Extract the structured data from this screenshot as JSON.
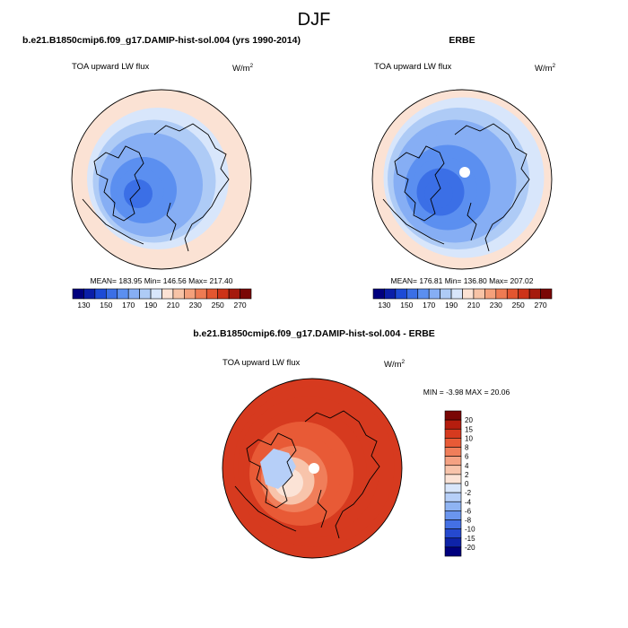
{
  "figure": {
    "season": "DJF",
    "variable": "TOA upward LW flux",
    "units": "W/m",
    "units_exp": "2"
  },
  "panels": [
    {
      "id": "model",
      "title": "b.e21.B1850cmip6.f09_g17.DAMIP-hist-sol.004 (yrs 1990-2014)",
      "field": "TOA upward LW flux",
      "stats": {
        "mean": "183.95",
        "min": "146.56",
        "max": "217.40"
      },
      "stats_text": "MEAN= 183.95  Min= 146.56  Max= 217.40",
      "ring_levels": [
        205,
        200,
        190,
        180,
        175,
        170,
        165,
        160,
        158
      ]
    },
    {
      "id": "obs",
      "title": "ERBE",
      "field": "TOA upward LW flux",
      "stats": {
        "mean": "176.81",
        "min": "136.80",
        "max": "207.02"
      },
      "stats_text": "MEAN= 176.81  Min= 136.80  Max= 207.02",
      "pole_missing": true,
      "ring_levels": [
        200,
        195,
        185,
        175,
        170,
        165,
        160,
        155,
        150
      ]
    },
    {
      "id": "diff",
      "title": "b.e21.B1850cmip6.f09_g17.DAMIP-hist-sol.004 - ERBE",
      "field": "TOA upward LW flux",
      "stats": {
        "min": "-3.98",
        "max": "20.06"
      },
      "stats_text": "MIN =  -3.98 MAX =  20.06",
      "pole_missing": true,
      "ring_levels": [
        13,
        12,
        11,
        10,
        9,
        8,
        6,
        2,
        1
      ]
    }
  ],
  "colorbar_abs": {
    "colors": [
      "#00007e",
      "#0a1ea8",
      "#1d4bd6",
      "#3b6fe6",
      "#5b8ff0",
      "#86aef4",
      "#aecbf6",
      "#d8e6fb",
      "#fbe2d4",
      "#f7c3a6",
      "#f4a07b",
      "#ee7b53",
      "#e35630",
      "#cc3318",
      "#a51a0c",
      "#7a0705"
    ],
    "tick_labels": [
      "130",
      "150",
      "170",
      "190",
      "210",
      "230",
      "250",
      "270"
    ],
    "tick_values": [
      130,
      150,
      170,
      190,
      210,
      230,
      250,
      270
    ],
    "min": 120,
    "max": 280
  },
  "colorbar_diff": {
    "colors": [
      "#7a0705",
      "#b51d0e",
      "#d63a1f",
      "#e85a36",
      "#f07e5a",
      "#f5a283",
      "#f8c4ab",
      "#fbe3d6",
      "#d8e6fb",
      "#b6cff8",
      "#8fb4f3",
      "#6a95ee",
      "#4470e4",
      "#2549cf",
      "#0e23a8",
      "#00007e"
    ],
    "tick_labels": [
      "20",
      "15",
      "10",
      "8",
      "6",
      "4",
      "2",
      "0",
      "-2",
      "-4",
      "-6",
      "-8",
      "-10",
      "-15",
      "-20"
    ]
  }
}
